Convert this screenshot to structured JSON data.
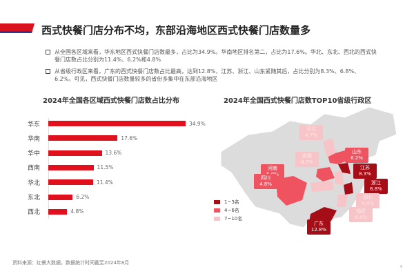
{
  "header": {
    "title": "西式快餐门店分布不均，东部沿海地区西式快餐门店数量多"
  },
  "bullets": [
    "从全国各区域来看，华东地区西式快餐门店数最多，占比为34.9%。华南地区排名第二，占比为17.6%。华北、东北、西北的西式快餐门店数占比分别为11.4%、6.2%和4.8%",
    "从省级行政区来看，广东的西式快餐门店数占比最高，达到12.8%，江苏、浙江、山东紧随其后，占比分别为8.3%、6.8%、6.2%。可见，西式快餐门店数量较多的省份多集中在东部沿海地区"
  ],
  "chart_data": [
    {
      "type": "bar",
      "orientation": "horizontal",
      "title": "2024年全国各区域西式快餐门店数占比分布",
      "categories": [
        "华东",
        "华南",
        "华中",
        "西南",
        "华北",
        "东北",
        "西北"
      ],
      "values": [
        34.9,
        17.6,
        13.6,
        11.5,
        11.4,
        6.2,
        4.8
      ],
      "labels": [
        "34.9%",
        "17.6%",
        "13.6%",
        "11.5%",
        "11.4%",
        "6.2%",
        "4.8%"
      ],
      "unit": "%",
      "color": "#e0101c"
    },
    {
      "type": "map",
      "title": "2024年全国西式快餐门店数TOP10省级行政区",
      "regions": [
        {
          "name": "广东",
          "value": "12.8%",
          "tier": 1
        },
        {
          "name": "江苏",
          "value": "8.3%",
          "tier": 1
        },
        {
          "name": "浙江",
          "value": "6.8%",
          "tier": 1
        },
        {
          "name": "山东",
          "value": "6.2%",
          "tier": 2
        },
        {
          "name": "河南",
          "value": "5.8%",
          "tier": 2
        },
        {
          "name": "四川",
          "value": "4.8%",
          "tier": 2
        },
        {
          "name": "河北",
          "value": "4.7%",
          "tier": 3
        },
        {
          "name": "安徽",
          "value": "4.5%",
          "tier": 3
        },
        {
          "name": "湖北",
          "value": "4.4%",
          "tier": 3
        },
        {
          "name": "福建",
          "value": "4.4%",
          "tier": 3
        }
      ],
      "legend": [
        {
          "label": "1~3名",
          "color": "#a50e17"
        },
        {
          "label": "4~6名",
          "color": "#ef5360"
        },
        {
          "label": "7~10名",
          "color": "#f7c4c8"
        }
      ]
    }
  ],
  "footer": {
    "source": "资料来源：红餐大数据，数据统计时间截至2024年8月",
    "page": "9"
  }
}
